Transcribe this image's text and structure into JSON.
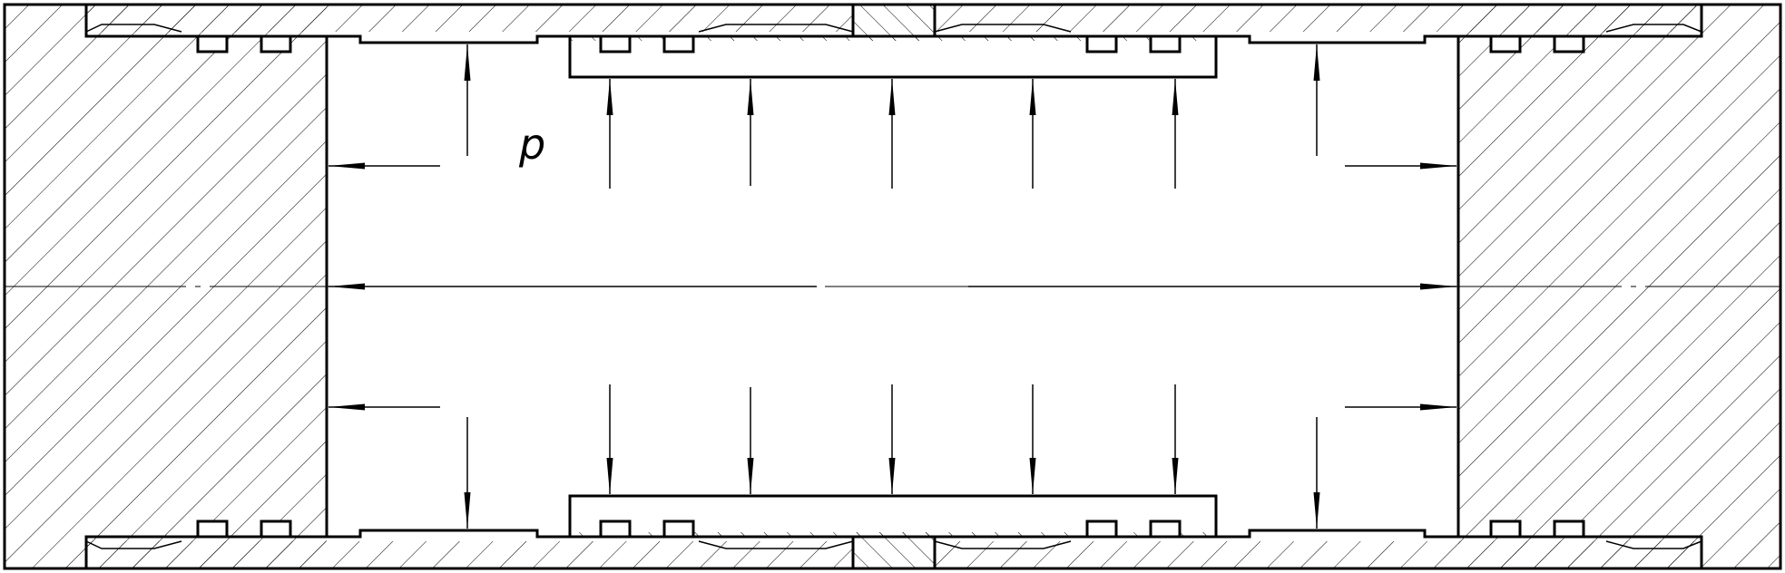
{
  "figure": {
    "pressure_label": "p",
    "colors": {
      "line": "#000000",
      "background": "#ffffff"
    }
  }
}
